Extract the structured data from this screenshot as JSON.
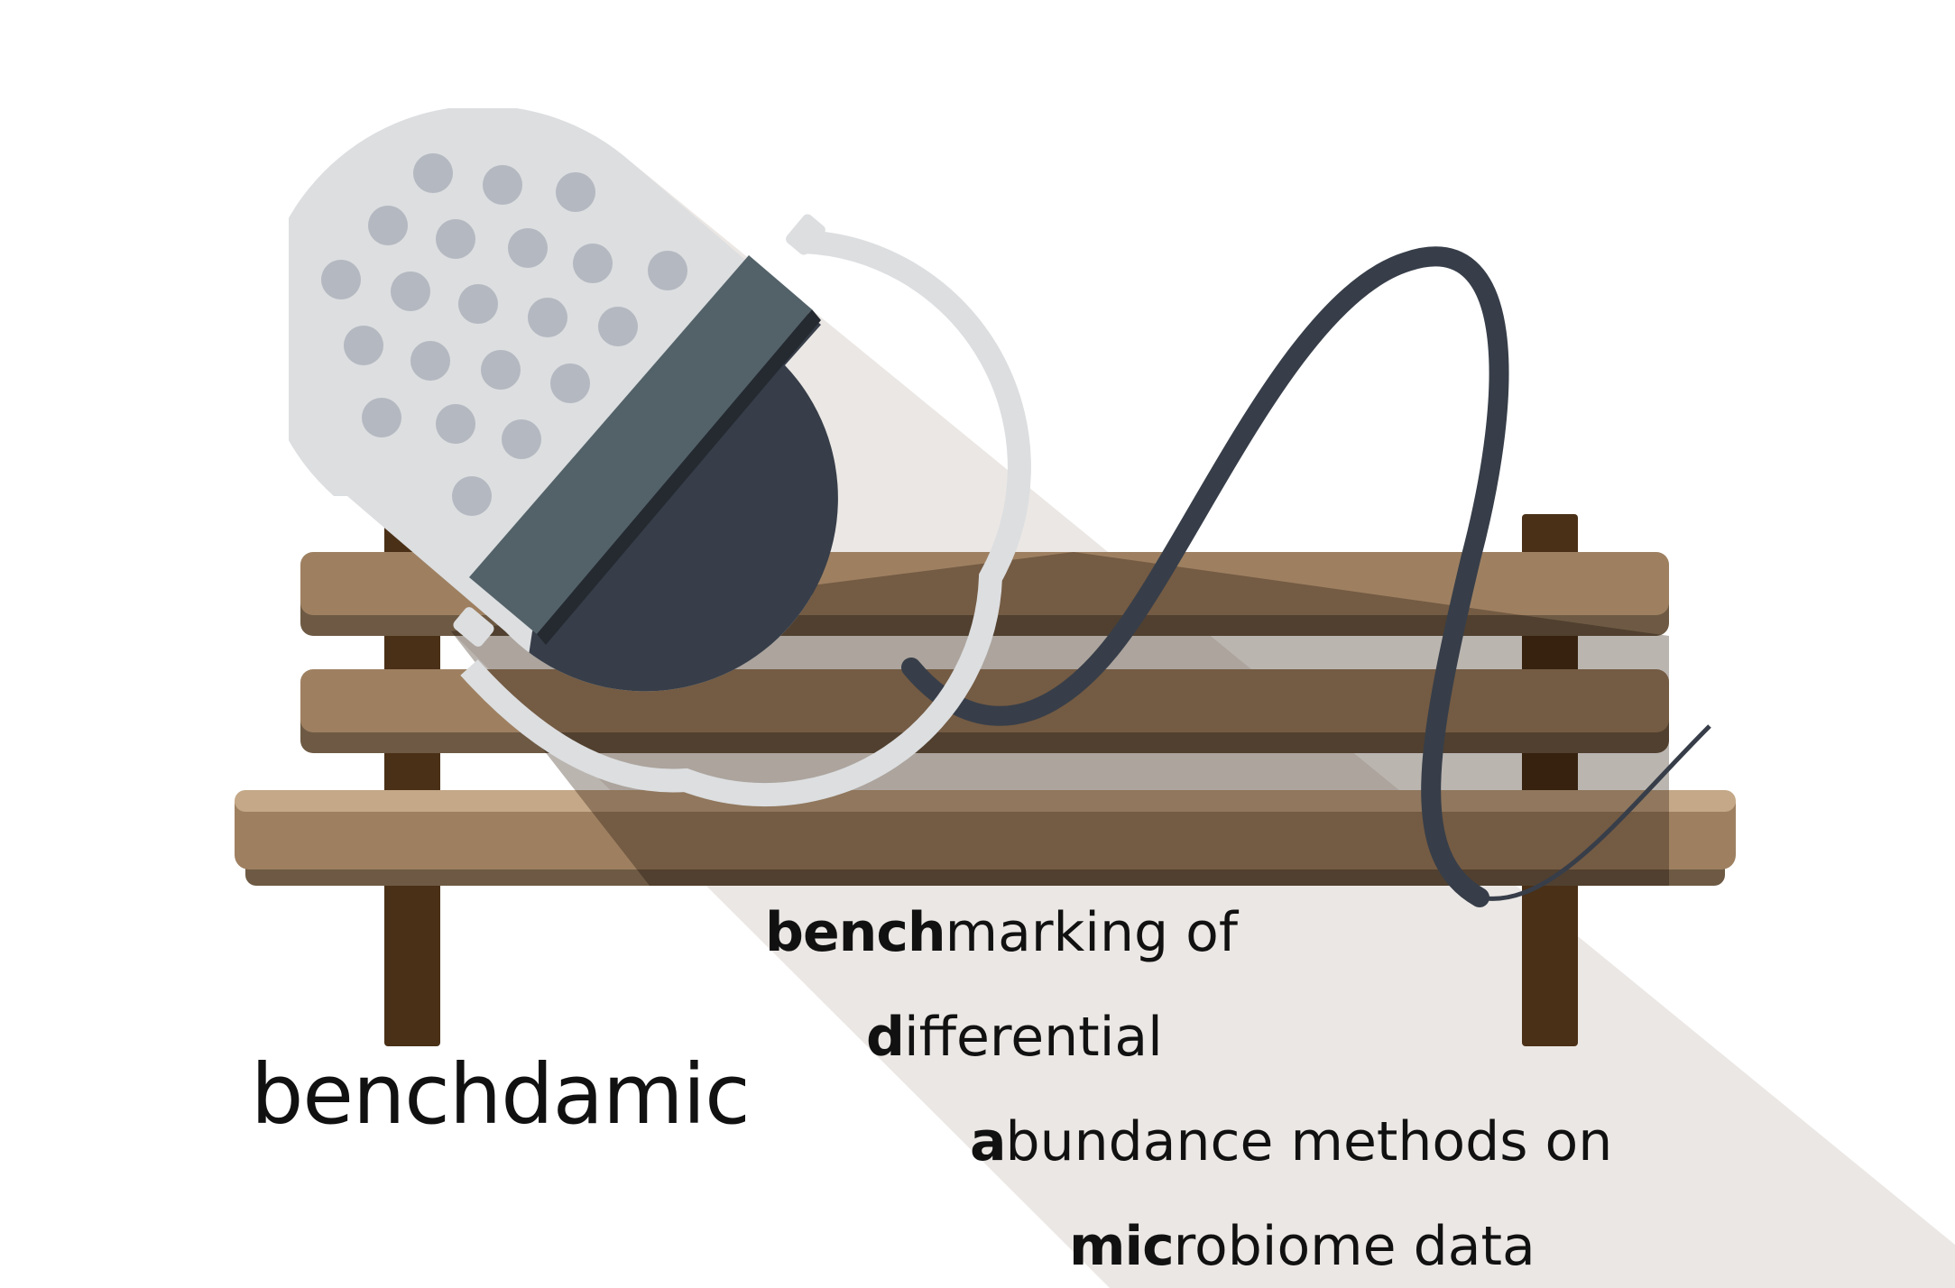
{
  "logo": {
    "name": "benchdamic",
    "colors": {
      "background": "#ffffff",
      "shadow": "#ebe7e4",
      "bench_wood": "#9e8061",
      "bench_wood_light": "#c4a887",
      "bench_wood_dark": "#6e5a44",
      "bench_leg": "#4a3017",
      "pill_light": "#dcdee0",
      "pill_dots": "#b4b8c0",
      "pill_dark": "#373e49",
      "pill_band": "#536269",
      "cable": "#373e49",
      "text": "#111111"
    }
  },
  "tagline": [
    {
      "bold": "bench",
      "rest": "marking of"
    },
    {
      "bold": "d",
      "rest": "ifferential"
    },
    {
      "bold": "a",
      "rest": "bundance methods on"
    },
    {
      "bold": "mic",
      "rest": "robiome data"
    }
  ]
}
